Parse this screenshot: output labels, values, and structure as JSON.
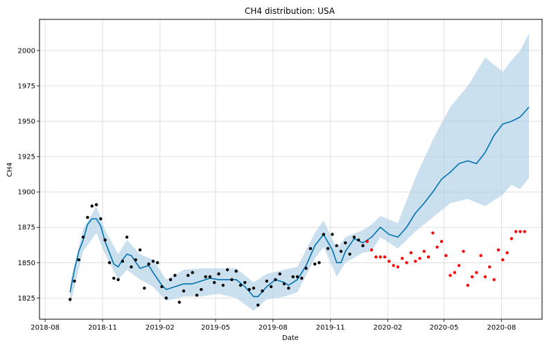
{
  "chart_data": {
    "type": "line",
    "title": "CH4 distribution: USA",
    "xlabel": "Date",
    "ylabel": "CH4",
    "xlim": [
      "2018-07-23",
      "2020-10-05"
    ],
    "ylim": [
      1810,
      2022
    ],
    "grid": true,
    "x_ticks": [
      "2018-08",
      "2018-11",
      "2019-02",
      "2019-05",
      "2019-08",
      "2019-11",
      "2020-02",
      "2020-05",
      "2020-08"
    ],
    "y_ticks": [
      1825,
      1850,
      1875,
      1900,
      1925,
      1950,
      1975,
      2000
    ],
    "colors": {
      "forecast": "#0072B2",
      "band": "#A6CBE3",
      "observed": "#000000",
      "holdout": "#FF0000",
      "grid": "#D9D9D9"
    },
    "series": [
      {
        "role": "forecast",
        "x": [
          "2018-09-10",
          "2018-09-17",
          "2018-09-24",
          "2018-10-01",
          "2018-10-08",
          "2018-10-15",
          "2018-10-22",
          "2018-10-29",
          "2018-11-05",
          "2018-11-19",
          "2018-11-26",
          "2018-12-03",
          "2018-12-10",
          "2018-12-17",
          "2018-12-31",
          "2019-01-07",
          "2019-01-14",
          "2019-01-21",
          "2019-02-04",
          "2019-02-11",
          "2019-02-25",
          "2019-03-11",
          "2019-03-25",
          "2019-04-08",
          "2019-04-22",
          "2019-05-06",
          "2019-05-20",
          "2019-06-03",
          "2019-06-17",
          "2019-07-01",
          "2019-07-08",
          "2019-07-22",
          "2019-08-05",
          "2019-08-19",
          "2019-08-26",
          "2019-09-09",
          "2019-09-23",
          "2019-10-07",
          "2019-10-21",
          "2019-11-04",
          "2019-11-11",
          "2019-11-18",
          "2019-11-25",
          "2019-12-09",
          "2019-12-23",
          "2020-01-06",
          "2020-01-20",
          "2020-02-03",
          "2020-02-17",
          "2020-03-02",
          "2020-03-16",
          "2020-03-30",
          "2020-04-13",
          "2020-04-27",
          "2020-05-11",
          "2020-05-25",
          "2020-06-08",
          "2020-06-22",
          "2020-07-06",
          "2020-07-20",
          "2020-08-03",
          "2020-08-17",
          "2020-08-31",
          "2020-09-14"
        ],
        "values": [
          1829,
          1845,
          1858,
          1866,
          1877,
          1881,
          1881,
          1876,
          1865,
          1849,
          1847,
          1852,
          1856,
          1855,
          1846,
          1847,
          1848,
          1843,
          1834,
          1831,
          1833,
          1835,
          1835,
          1837,
          1839,
          1838,
          1838,
          1838,
          1833,
          1826,
          1826,
          1833,
          1838,
          1836,
          1834,
          1838,
          1848,
          1862,
          1870,
          1859,
          1850,
          1850,
          1858,
          1867,
          1864,
          1868,
          1875,
          1870,
          1868,
          1875,
          1885,
          1892,
          1900,
          1909,
          1914,
          1920,
          1922,
          1920,
          1928,
          1940,
          1948,
          1950,
          1953,
          1960
        ]
      },
      {
        "role": "upper_bound",
        "x": [
          "2018-09-10",
          "2018-10-01",
          "2018-10-22",
          "2018-11-05",
          "2018-11-26",
          "2018-12-10",
          "2018-12-31",
          "2019-01-21",
          "2019-02-11",
          "2019-03-11",
          "2019-04-08",
          "2019-05-06",
          "2019-06-03",
          "2019-07-01",
          "2019-07-22",
          "2019-08-19",
          "2019-09-09",
          "2019-10-07",
          "2019-10-21",
          "2019-11-11",
          "2019-11-25",
          "2019-12-23",
          "2020-01-06",
          "2020-01-20",
          "2020-02-17",
          "2020-03-16",
          "2020-04-13",
          "2020-05-11",
          "2020-06-08",
          "2020-07-06",
          "2020-08-03",
          "2020-08-17",
          "2020-08-31",
          "2020-09-14"
        ],
        "values": [
          1836,
          1874,
          1890,
          1873,
          1856,
          1866,
          1856,
          1852,
          1838,
          1845,
          1846,
          1846,
          1846,
          1836,
          1842,
          1845,
          1847,
          1871,
          1880,
          1860,
          1868,
          1873,
          1877,
          1883,
          1878,
          1910,
          1937,
          1960,
          1975,
          1995,
          1985,
          1993,
          2000,
          2012
        ]
      },
      {
        "role": "lower_bound",
        "x": [
          "2018-09-10",
          "2018-10-01",
          "2018-10-22",
          "2018-11-05",
          "2018-11-26",
          "2018-12-10",
          "2018-12-31",
          "2019-01-21",
          "2019-02-11",
          "2019-03-11",
          "2019-04-08",
          "2019-05-06",
          "2019-06-03",
          "2019-07-01",
          "2019-07-22",
          "2019-08-19",
          "2019-09-09",
          "2019-10-07",
          "2019-10-21",
          "2019-11-11",
          "2019-11-25",
          "2019-12-23",
          "2020-01-06",
          "2020-01-20",
          "2020-02-17",
          "2020-03-16",
          "2020-04-13",
          "2020-05-11",
          "2020-06-08",
          "2020-07-06",
          "2020-08-03",
          "2020-08-17",
          "2020-08-31",
          "2020-09-14"
        ],
        "values": [
          1820,
          1858,
          1871,
          1856,
          1838,
          1845,
          1838,
          1833,
          1823,
          1826,
          1826,
          1828,
          1825,
          1816,
          1824,
          1826,
          1829,
          1853,
          1861,
          1840,
          1850,
          1857,
          1858,
          1868,
          1860,
          1872,
          1882,
          1892,
          1895,
          1890,
          1898,
          1905,
          1902,
          1910
        ]
      },
      {
        "role": "observed",
        "x": [
          "2018-09-10",
          "2018-09-17",
          "2018-09-24",
          "2018-10-01",
          "2018-10-08",
          "2018-10-15",
          "2018-10-22",
          "2018-10-29",
          "2018-11-05",
          "2018-11-12",
          "2018-11-19",
          "2018-11-26",
          "2018-12-03",
          "2018-12-10",
          "2018-12-17",
          "2018-12-24",
          "2018-12-31",
          "2019-01-07",
          "2019-01-14",
          "2019-01-21",
          "2019-01-28",
          "2019-02-04",
          "2019-02-11",
          "2019-02-18",
          "2019-02-25",
          "2019-03-04",
          "2019-03-11",
          "2019-03-18",
          "2019-03-25",
          "2019-04-01",
          "2019-04-08",
          "2019-04-15",
          "2019-04-22",
          "2019-04-29",
          "2019-05-06",
          "2019-05-13",
          "2019-05-20",
          "2019-05-27",
          "2019-06-03",
          "2019-06-10",
          "2019-06-17",
          "2019-06-24",
          "2019-07-01",
          "2019-07-08",
          "2019-07-15",
          "2019-07-22",
          "2019-07-29",
          "2019-08-05",
          "2019-08-12",
          "2019-08-19",
          "2019-08-26",
          "2019-09-02",
          "2019-09-09",
          "2019-09-16",
          "2019-09-23",
          "2019-09-30",
          "2019-10-07",
          "2019-10-14",
          "2019-10-21",
          "2019-10-28",
          "2019-11-04",
          "2019-11-11",
          "2019-11-18",
          "2019-11-25",
          "2019-12-02",
          "2019-12-09",
          "2019-12-16",
          "2019-12-23"
        ],
        "values": [
          1824,
          1837,
          1852,
          1868,
          1882,
          1890,
          1891,
          1881,
          1866,
          1850,
          1839,
          1838,
          1851,
          1868,
          1847,
          1852,
          1859,
          1832,
          1849,
          1851,
          1850,
          1833,
          1825,
          1838,
          1841,
          1822,
          1830,
          1841,
          1843,
          1827,
          1831,
          1840,
          1840,
          1836,
          1842,
          1834,
          1845,
          1838,
          1844,
          1834,
          1836,
          1831,
          1832,
          1820,
          1830,
          1837,
          1833,
          1838,
          1842,
          1835,
          1832,
          1840,
          1840,
          1839,
          1846,
          1860,
          1849,
          1850,
          1870,
          1860,
          1870,
          1862,
          1858,
          1864,
          1856,
          1868,
          1866,
          1862
        ]
      },
      {
        "role": "holdout",
        "x": [
          "2019-12-30",
          "2020-01-06",
          "2020-01-13",
          "2020-01-20",
          "2020-01-27",
          "2020-02-03",
          "2020-02-10",
          "2020-02-17",
          "2020-02-24",
          "2020-03-02",
          "2020-03-09",
          "2020-03-16",
          "2020-03-23",
          "2020-03-30",
          "2020-04-06",
          "2020-04-13",
          "2020-04-20",
          "2020-04-27",
          "2020-05-04",
          "2020-05-11",
          "2020-05-18",
          "2020-05-25",
          "2020-06-01",
          "2020-06-08",
          "2020-06-15",
          "2020-06-22",
          "2020-06-29",
          "2020-07-06",
          "2020-07-13",
          "2020-07-20",
          "2020-07-27",
          "2020-08-03",
          "2020-08-10",
          "2020-08-17",
          "2020-08-24",
          "2020-08-31",
          "2020-09-07"
        ],
        "values": [
          1865,
          1859,
          1854,
          1854,
          1854,
          1851,
          1848,
          1847,
          1853,
          1850,
          1857,
          1851,
          1853,
          1858,
          1854,
          1871,
          1861,
          1865,
          1855,
          1841,
          1843,
          1848,
          1858,
          1834,
          1840,
          1843,
          1855,
          1840,
          1847,
          1838,
          1859,
          1852,
          1857,
          1867,
          1872,
          1872,
          1872
        ]
      }
    ]
  }
}
